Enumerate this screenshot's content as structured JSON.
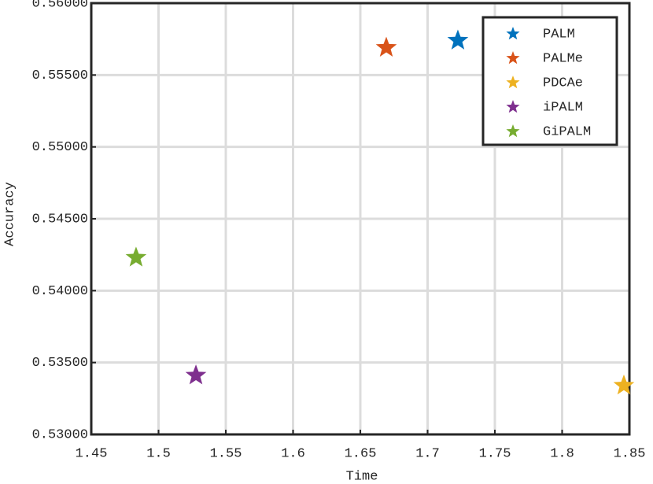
{
  "chart_data": {
    "type": "scatter",
    "xlabel": "Time",
    "ylabel": "Accuracy",
    "xlim": [
      1.45,
      1.85
    ],
    "xticks": [
      1.45,
      1.5,
      1.55,
      1.6,
      1.65,
      1.7,
      1.75,
      1.8,
      1.85
    ],
    "ylim": [
      0.53,
      0.56
    ],
    "yticks": [
      {
        "value": 0.53,
        "label": "0.53000"
      },
      {
        "value": 0.535,
        "label": "0.53500"
      },
      {
        "value": 0.54,
        "label": "0.54000"
      },
      {
        "value": 0.545,
        "label": "0.54500"
      },
      {
        "value": 0.55,
        "label": "0.55000"
      },
      {
        "value": 0.555,
        "label": "0.55500"
      },
      {
        "value": 0.56,
        "label": "0.56000"
      }
    ],
    "grid": true,
    "legend": "northeast",
    "marker": "star",
    "series": [
      {
        "name": "PALM",
        "color": "#0072bd",
        "x": [
          1.7225
        ],
        "y": [
          0.5574
        ]
      },
      {
        "name": "PALMe",
        "color": "#d95319",
        "x": [
          1.6693
        ],
        "y": [
          0.5569
        ]
      },
      {
        "name": "PDCAe",
        "color": "#edb120",
        "x": [
          1.8459
        ],
        "y": [
          0.5334
        ]
      },
      {
        "name": "iPALM",
        "color": "#7e2f8e",
        "x": [
          1.5278
        ],
        "y": [
          0.5341
        ]
      },
      {
        "name": "GiPALM",
        "color": "#77ac30",
        "x": [
          1.4833
        ],
        "y": [
          0.5423
        ]
      }
    ]
  }
}
